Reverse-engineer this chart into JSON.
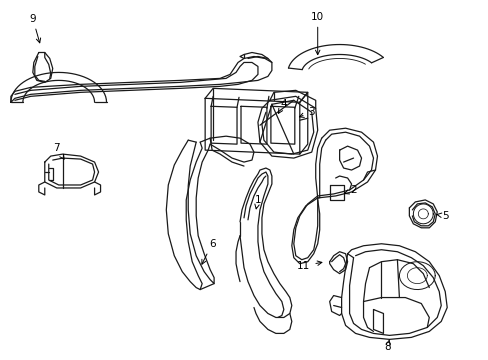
{
  "background_color": "#ffffff",
  "line_color": "#1a1a1a",
  "text_color": "#000000",
  "lw": 0.9,
  "fig_width": 4.89,
  "fig_height": 3.6,
  "dpi": 100
}
